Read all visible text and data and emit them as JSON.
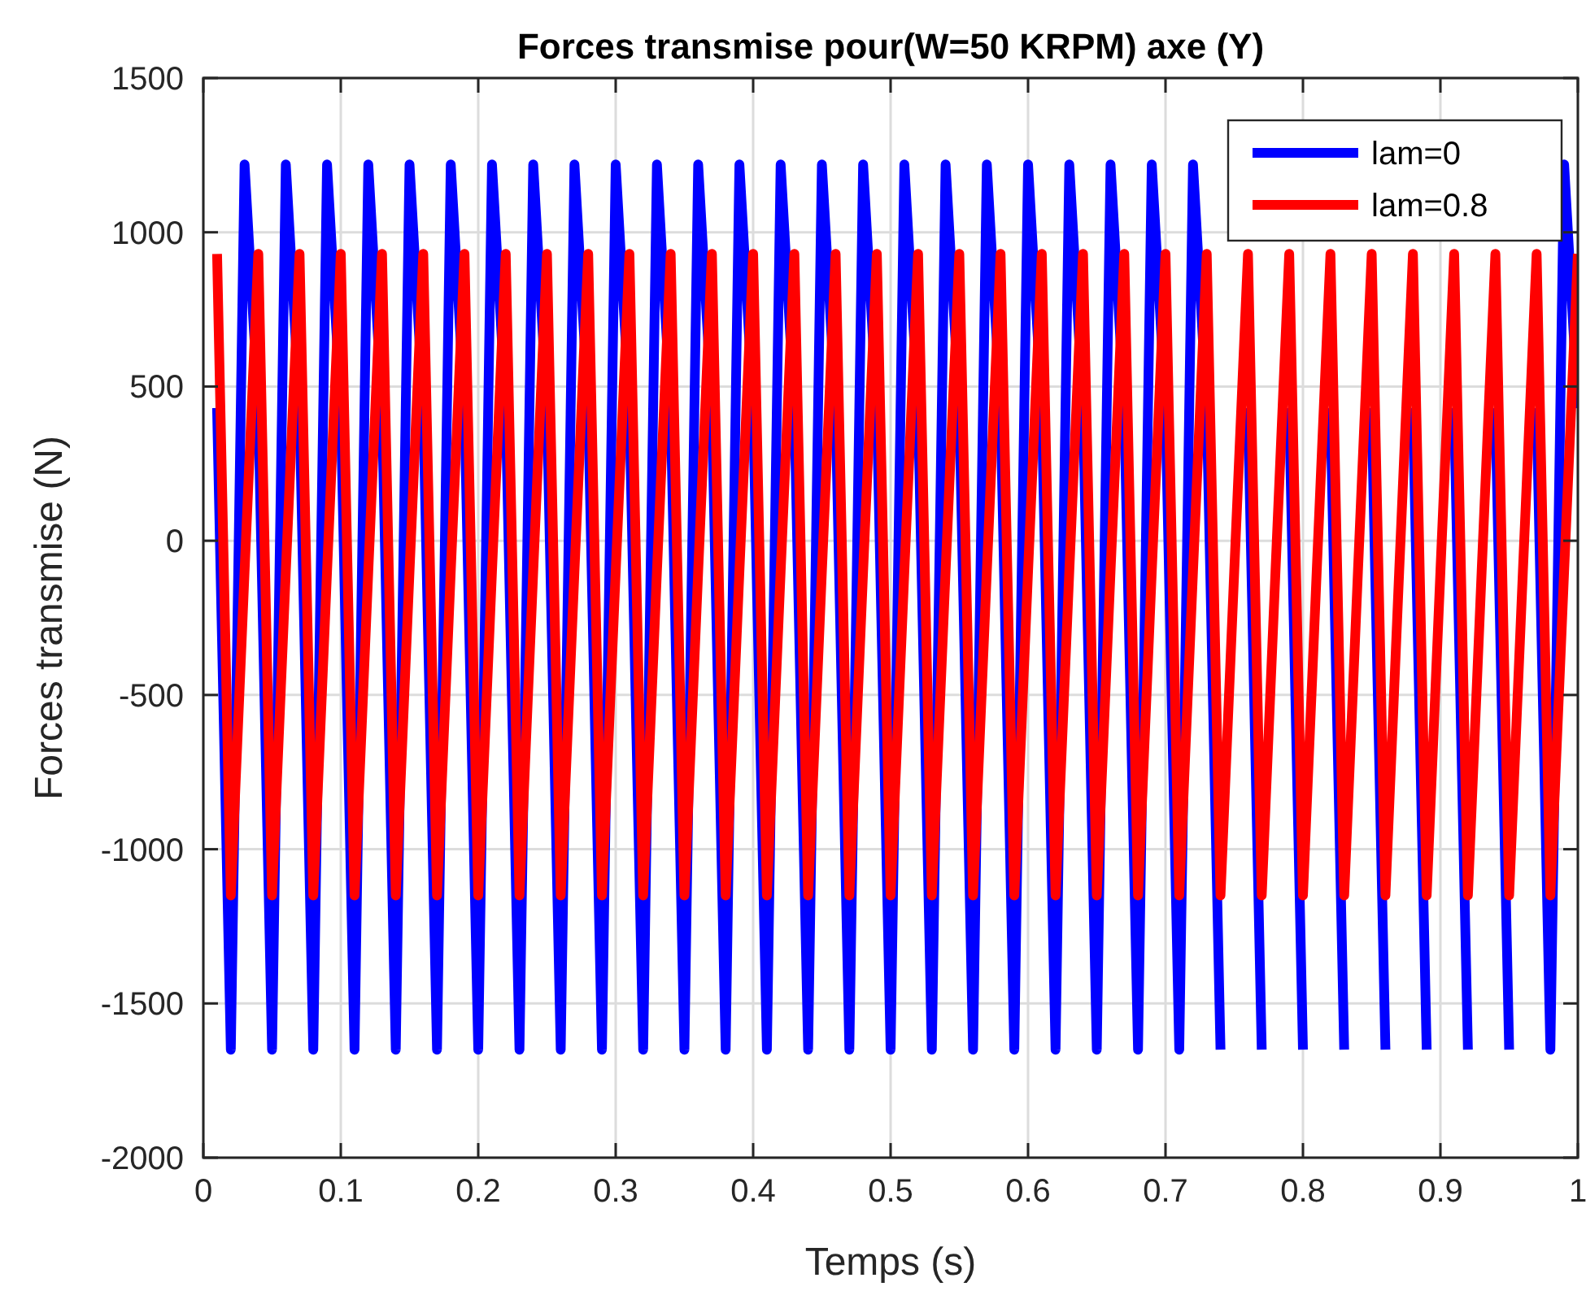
{
  "chart_data": {
    "type": "line",
    "title": "Forces transmise pour(W=50 KRPM) axe (Y)",
    "xlabel": "Temps (s)",
    "ylabel": "Forces transmise (N)",
    "x": [
      0.01,
      0.02,
      0.03,
      0.04,
      0.05,
      0.06,
      0.07,
      0.08,
      0.09,
      0.1,
      0.11,
      0.12,
      0.13,
      0.14,
      0.15,
      0.16,
      0.17,
      0.18,
      0.19,
      0.2,
      0.21,
      0.22,
      0.23,
      0.24,
      0.25,
      0.26,
      0.27,
      0.28,
      0.29,
      0.3,
      0.31,
      0.32,
      0.33,
      0.34,
      0.35,
      0.36,
      0.37,
      0.38,
      0.39,
      0.4,
      0.41,
      0.42,
      0.43,
      0.44,
      0.45,
      0.46,
      0.47,
      0.48,
      0.49,
      0.5,
      0.51,
      0.52,
      0.53,
      0.54,
      0.55,
      0.56,
      0.57,
      0.58,
      0.59,
      0.6,
      0.61,
      0.62,
      0.63,
      0.64,
      0.65,
      0.66,
      0.67,
      0.68,
      0.69,
      0.7,
      0.71,
      0.72,
      0.73,
      0.74,
      0.75,
      0.76,
      0.77,
      0.78,
      0.79,
      0.8,
      0.81,
      0.82,
      0.83,
      0.84,
      0.85,
      0.86,
      0.87,
      0.88,
      0.89,
      0.9,
      0.91,
      0.92,
      0.93,
      0.94,
      0.95,
      0.96,
      0.97,
      0.98,
      0.99,
      1
    ],
    "series": [
      {
        "name": "lam=0",
        "color": "#0000ff",
        "values": [
          430,
          -1650,
          1220,
          430,
          -1650,
          1220,
          430,
          -1650,
          1220,
          430,
          -1650,
          1220,
          430,
          -1650,
          1220,
          430,
          -1650,
          1220,
          430,
          -1650,
          1220,
          430,
          -1650,
          1220,
          430,
          -1650,
          1220,
          430,
          -1650,
          1220,
          430,
          -1650,
          1220,
          430,
          -1650,
          1220,
          430,
          -1650,
          1220,
          430,
          -1650,
          1220,
          430,
          -1650,
          1220,
          430,
          -1650,
          1220,
          430,
          -1650,
          1220,
          430,
          -1650,
          1220,
          430,
          -1650,
          1220,
          430,
          -1650,
          1220,
          430,
          -1650,
          1220,
          430,
          -1650,
          1220,
          430,
          -1650,
          1220,
          430,
          -1650,
          1220,
          430,
          -1650,
          null,
          430,
          -1650,
          null,
          430,
          -1650,
          null,
          430,
          -1650,
          null,
          430,
          -1650,
          null,
          430,
          -1650,
          null,
          430,
          -1650,
          null,
          430,
          -1650,
          null,
          430,
          -1650,
          1220,
          430
        ]
      },
      {
        "name": "lam=0.8",
        "color": "#ff0000",
        "values": [
          930,
          -1150,
          -100,
          930,
          -1150,
          -100,
          930,
          -1150,
          -100,
          930,
          -1150,
          -100,
          930,
          -1150,
          -100,
          930,
          -1150,
          -100,
          930,
          -1150,
          -100,
          930,
          -1150,
          -100,
          930,
          -1150,
          -100,
          930,
          -1150,
          -100,
          930,
          -1150,
          -100,
          930,
          -1150,
          -100,
          930,
          -1150,
          -100,
          930,
          -1150,
          -100,
          930,
          -1150,
          -100,
          930,
          -1150,
          -100,
          930,
          -1150,
          -100,
          930,
          -1150,
          -100,
          930,
          -1150,
          -100,
          930,
          -1150,
          -100,
          930,
          -1150,
          -100,
          930,
          -1150,
          -100,
          930,
          -1150,
          -100,
          930,
          -1150,
          -100,
          930,
          -1150,
          -100,
          930,
          -1150,
          -100,
          930,
          -1150,
          -100,
          930,
          -1150,
          -100,
          930,
          -1150,
          -100,
          930,
          -1150,
          -100,
          930,
          -1150,
          -100,
          930,
          -1150,
          -100,
          930,
          -1150,
          -100,
          930
        ]
      }
    ],
    "xlim": [
      0,
      1
    ],
    "xticks": [
      0,
      0.1,
      0.2,
      0.3,
      0.4,
      0.5,
      0.6,
      0.7,
      0.8,
      0.9,
      1
    ],
    "ylim": [
      -2000,
      1500
    ],
    "yticks": [
      -2000,
      -1500,
      -1000,
      -500,
      0,
      500,
      1000,
      1500
    ],
    "grid": true,
    "legend": "top right",
    "line_style": "solid"
  }
}
